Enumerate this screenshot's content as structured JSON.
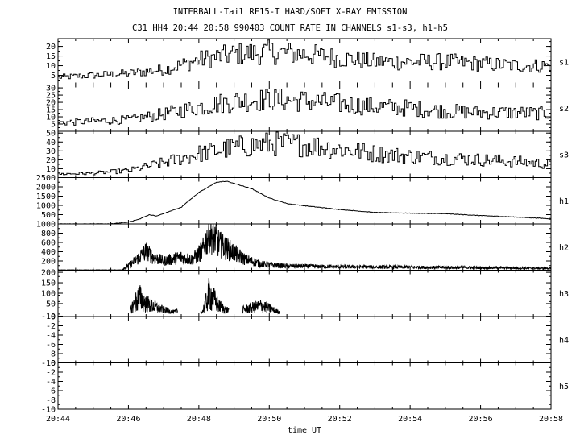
{
  "chart_data": {
    "type": "line",
    "title": "INTERBALL-Tail RF15-I HARD/SOFT X-RAY EMISSION",
    "subtitle": "C31 HH4 20:44 20:58 990403  COUNT RATE IN CHANNELS s1-s3, h1-h5",
    "xlabel": "time UT",
    "x_ticks": [
      "20:44",
      "20:46",
      "20:48",
      "20:50",
      "20:52",
      "20:54",
      "20:56",
      "20:58"
    ],
    "x_range_minutes": [
      0,
      14
    ],
    "panels": [
      {
        "name": "s1",
        "ylim": [
          0,
          24
        ],
        "yticks": [
          5,
          10,
          15,
          20
        ],
        "noisy": true,
        "series": [
          [
            0,
            4
          ],
          [
            1,
            5
          ],
          [
            2,
            6
          ],
          [
            3,
            8
          ],
          [
            4,
            13
          ],
          [
            5,
            16
          ],
          [
            6,
            17
          ],
          [
            7,
            16
          ],
          [
            8,
            14
          ],
          [
            9,
            12
          ],
          [
            10,
            12
          ],
          [
            11,
            12
          ],
          [
            12,
            11
          ],
          [
            13,
            10
          ],
          [
            14,
            10
          ]
        ]
      },
      {
        "name": "s2",
        "ylim": [
          0,
          32
        ],
        "yticks": [
          5,
          10,
          15,
          20,
          25,
          30
        ],
        "noisy": true,
        "series": [
          [
            0,
            6
          ],
          [
            1,
            7
          ],
          [
            2,
            8
          ],
          [
            3,
            12
          ],
          [
            4,
            17
          ],
          [
            5,
            21
          ],
          [
            6,
            22
          ],
          [
            7,
            21
          ],
          [
            8,
            19
          ],
          [
            9,
            17
          ],
          [
            10,
            16
          ],
          [
            11,
            14
          ],
          [
            12,
            13
          ],
          [
            13,
            13
          ],
          [
            14,
            12
          ]
        ]
      },
      {
        "name": "s3",
        "ylim": [
          0,
          52
        ],
        "yticks": [
          10,
          20,
          30,
          40,
          50
        ],
        "noisy": true,
        "series": [
          [
            0,
            4
          ],
          [
            1,
            5
          ],
          [
            2,
            8
          ],
          [
            3,
            17
          ],
          [
            4,
            27
          ],
          [
            5,
            34
          ],
          [
            6,
            38
          ],
          [
            7,
            37
          ],
          [
            8,
            32
          ],
          [
            9,
            27
          ],
          [
            10,
            24
          ],
          [
            11,
            22
          ],
          [
            12,
            20
          ],
          [
            13,
            18
          ],
          [
            14,
            15
          ]
        ]
      },
      {
        "name": "h1",
        "ylim": [
          0,
          2500
        ],
        "yticks": [
          500,
          1000,
          1500,
          2000,
          2500
        ],
        "noisy": false,
        "series": [
          [
            0,
            0
          ],
          [
            1.5,
            0
          ],
          [
            2,
            100
          ],
          [
            2.3,
            250
          ],
          [
            2.6,
            500
          ],
          [
            2.8,
            420
          ],
          [
            3,
            560
          ],
          [
            3.5,
            900
          ],
          [
            4,
            1700
          ],
          [
            4.5,
            2250
          ],
          [
            4.8,
            2300
          ],
          [
            5.5,
            1900
          ],
          [
            6,
            1400
          ],
          [
            6.5,
            1100
          ],
          [
            7,
            980
          ],
          [
            8,
            780
          ],
          [
            9,
            620
          ],
          [
            10,
            580
          ],
          [
            11,
            550
          ],
          [
            12,
            450
          ],
          [
            13,
            370
          ],
          [
            14,
            280
          ]
        ]
      },
      {
        "name": "h2",
        "ylim": [
          0,
          1000
        ],
        "yticks": [
          200,
          400,
          600,
          800,
          1000
        ],
        "noisy": true,
        "series": [
          [
            0,
            5
          ],
          [
            1.8,
            5
          ],
          [
            2.1,
            150
          ],
          [
            2.5,
            400
          ],
          [
            2.7,
            280
          ],
          [
            3,
            200
          ],
          [
            3.5,
            280
          ],
          [
            3.8,
            230
          ],
          [
            4.1,
            420
          ],
          [
            4.3,
            800
          ],
          [
            4.6,
            550
          ],
          [
            4.9,
            420
          ],
          [
            5.3,
            240
          ],
          [
            5.8,
            130
          ],
          [
            6.5,
            90
          ],
          [
            8,
            75
          ],
          [
            10,
            65
          ],
          [
            12,
            55
          ],
          [
            14,
            40
          ]
        ]
      },
      {
        "name": "h3",
        "ylim": [
          -12,
          210
        ],
        "yticks": [
          -10,
          50,
          100,
          150,
          200
        ],
        "noisy": true,
        "series": [
          [
            2.05,
            20
          ],
          [
            2.3,
            80
          ],
          [
            2.5,
            50
          ],
          [
            3,
            20
          ],
          [
            3.3,
            10
          ],
          [
            3.5,
            20
          ],
          [
            4.1,
            10
          ],
          [
            4.3,
            100
          ],
          [
            4.55,
            40
          ],
          [
            4.8,
            20
          ],
          [
            5,
            10
          ],
          [
            5.5,
            30
          ],
          [
            5.8,
            40
          ],
          [
            6.1,
            20
          ],
          [
            6.3,
            8
          ]
        ],
        "segments_x": [
          [
            2.05,
            3.4
          ],
          [
            4.05,
            4.85
          ],
          [
            5.25,
            6.3
          ]
        ]
      },
      {
        "name": "h4",
        "ylim": [
          -10,
          0
        ],
        "yticks": [
          -10,
          -8,
          -6,
          -4,
          -2,
          0
        ],
        "noisy": false,
        "series": []
      },
      {
        "name": "h5",
        "ylim": [
          -10,
          0
        ],
        "yticks": [
          -10,
          -8,
          -6,
          -4,
          -2,
          0
        ],
        "noisy": false,
        "series": []
      }
    ]
  }
}
